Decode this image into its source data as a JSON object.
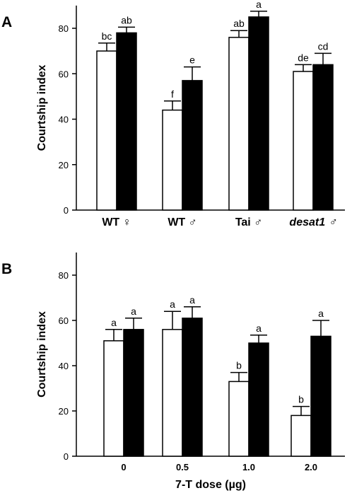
{
  "chart_data": [
    {
      "type": "bar",
      "panel_label": "A",
      "ylabel": "Courtship index",
      "xlabel": "",
      "ylim": [
        0,
        90
      ],
      "yticks": [
        0,
        20,
        40,
        60,
        80
      ],
      "categories": [
        "WT ♀",
        "WT ♂",
        "Tai ♂",
        "desat1 ♂"
      ],
      "category_italic": [
        false,
        false,
        false,
        true
      ],
      "series": [
        {
          "values": [
            70,
            44,
            76,
            61
          ],
          "errors": [
            3.5,
            4,
            3,
            3
          ],
          "letters": [
            "bc",
            "f",
            "ab",
            "de"
          ],
          "fill": "#ffffff"
        },
        {
          "values": [
            78,
            57,
            85,
            64
          ],
          "errors": [
            2.5,
            6,
            2.5,
            5
          ],
          "letters": [
            "ab",
            "e",
            "a",
            "cd"
          ],
          "fill": "#000000"
        }
      ],
      "grid": false
    },
    {
      "type": "bar",
      "panel_label": "B",
      "ylabel": "Courtship index",
      "xlabel": "7-T dose (µg)",
      "ylim": [
        0,
        90
      ],
      "yticks": [
        0,
        20,
        40,
        60,
        80
      ],
      "categories": [
        "0",
        "0.5",
        "1.0",
        "2.0"
      ],
      "category_italic": [
        false,
        false,
        false,
        false
      ],
      "series": [
        {
          "values": [
            51,
            56,
            33,
            18
          ],
          "errors": [
            5,
            8,
            4,
            4
          ],
          "letters": [
            "a",
            "a",
            "b",
            "b"
          ],
          "fill": "#ffffff"
        },
        {
          "values": [
            56,
            61,
            50,
            53
          ],
          "errors": [
            5,
            5,
            3.5,
            7
          ],
          "letters": [
            "a",
            "a",
            "a",
            "a"
          ],
          "fill": "#000000"
        }
      ],
      "grid": false
    }
  ]
}
